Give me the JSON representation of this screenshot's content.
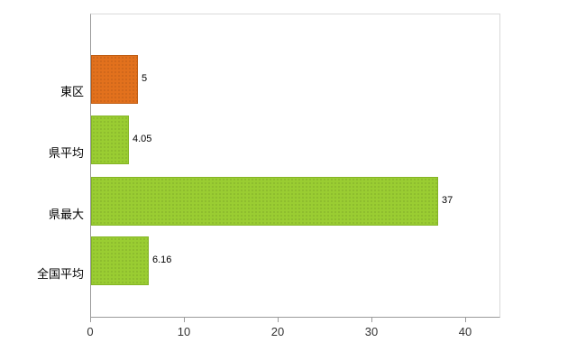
{
  "chart_data": {
    "type": "bar",
    "orientation": "horizontal",
    "title": "",
    "xlabel": "",
    "ylabel": "",
    "categories": [
      "東区",
      "県平均",
      "県最大",
      "全国平均"
    ],
    "values": [
      5,
      4.05,
      37,
      6.16
    ],
    "value_labels": [
      "5",
      "4.05",
      "37",
      "6.16"
    ],
    "colors": [
      "#e2711d",
      "#9acd32",
      "#9acd32",
      "#9acd32"
    ],
    "border_colors": [
      "#bf5c12",
      "#84b425",
      "#84b425",
      "#84b425"
    ],
    "x_ticks": [
      0,
      10,
      20,
      30,
      40
    ],
    "xlim": [
      0,
      43.75
    ],
    "grid": false,
    "legend": false,
    "background": "#ffffff",
    "axis_color": "#9b9b9b",
    "frame_color": "#d9d9d9"
  }
}
